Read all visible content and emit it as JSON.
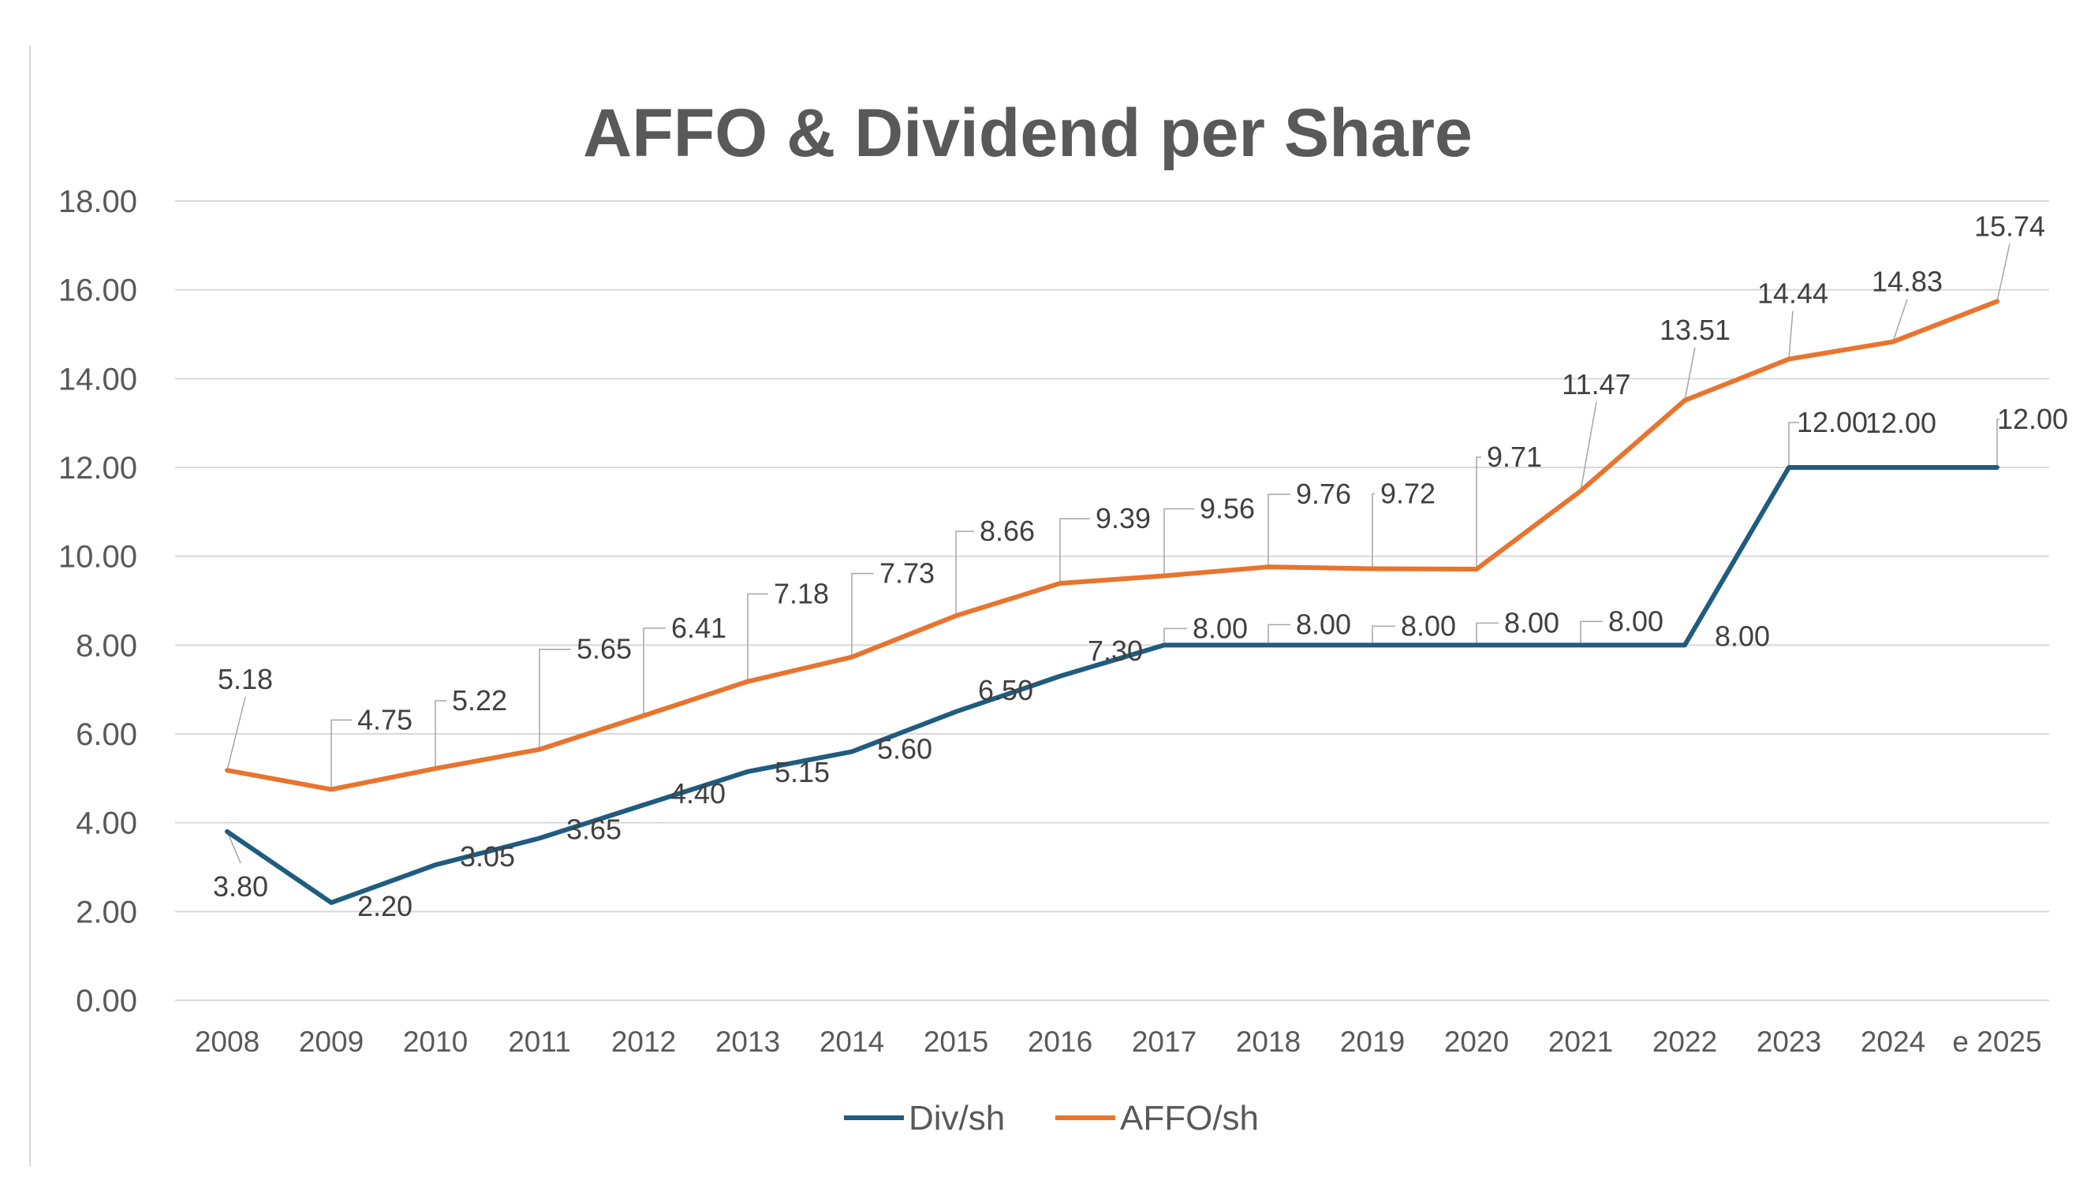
{
  "chart_data": {
    "type": "line",
    "title": "AFFO & Dividend per Share",
    "xlabel": "",
    "ylabel": "",
    "categories": [
      "2008",
      "2009",
      "2010",
      "2011",
      "2012",
      "2013",
      "2014",
      "2015",
      "2016",
      "2017",
      "2018",
      "2019",
      "2020",
      "2021",
      "2022",
      "2023",
      "2024",
      "e 2025"
    ],
    "ylim": [
      0,
      18
    ],
    "yticks": [
      "0.00",
      "2.00",
      "4.00",
      "6.00",
      "8.00",
      "10.00",
      "12.00",
      "14.00",
      "16.00",
      "18.00"
    ],
    "grid": true,
    "legend_position": "bottom",
    "series": [
      {
        "name": "Div/sh",
        "color": "#1f5c7f",
        "values": [
          3.8,
          2.2,
          3.05,
          3.65,
          4.4,
          5.15,
          5.6,
          6.5,
          7.3,
          8.0,
          8.0,
          8.0,
          8.0,
          8.0,
          8.0,
          12.0,
          12.0,
          12.0
        ],
        "labels": [
          "3.80",
          "2.20",
          "3.05",
          "3.65",
          "4.40",
          "5.15",
          "5.60",
          "6.50",
          "7.30",
          "8.00",
          "8.00",
          "8.00",
          "8.00",
          "8.00",
          "8.00",
          "12.00",
          "12.00",
          "12.00"
        ]
      },
      {
        "name": "AFFO/sh",
        "color": "#e8742e",
        "values": [
          5.18,
          4.75,
          5.22,
          5.65,
          6.41,
          7.18,
          7.73,
          8.66,
          9.39,
          9.56,
          9.76,
          9.72,
          9.71,
          11.47,
          13.51,
          14.44,
          14.83,
          15.74
        ],
        "labels": [
          "5.18",
          "4.75",
          "5.22",
          "5.65",
          "6.41",
          "7.18",
          "7.73",
          "8.66",
          "9.39",
          "9.56",
          "9.76",
          "9.72",
          "9.71",
          "11.47",
          "13.51",
          "14.44",
          "14.83",
          "15.74"
        ]
      }
    ]
  }
}
